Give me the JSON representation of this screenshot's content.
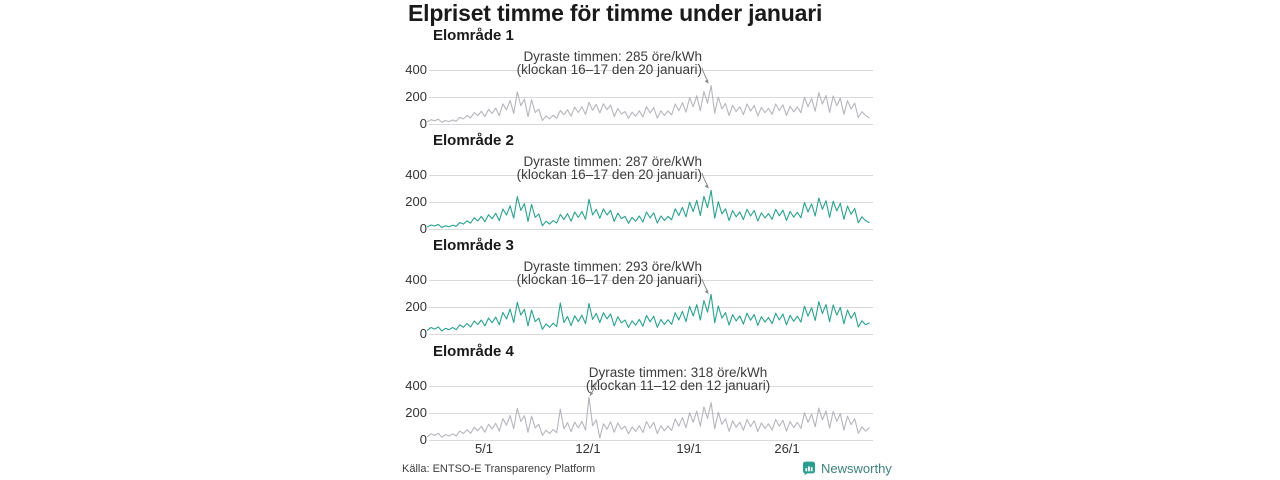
{
  "title": "Elpriset timme för timme under januari",
  "source": "Källa: ENTSO-E Transparency Platform",
  "brand": {
    "name": "Newsworthy"
  },
  "colors": {
    "teal": "#2aa190",
    "gray": "#b5b5bd",
    "grid": "#d9d9d9",
    "pointer": "#8a8a8a",
    "brand_teal": "#3e837e",
    "logo_teal": "#2a9d8f",
    "title_text": "#1a1a1a",
    "annotation_text": "#3c3c3c"
  },
  "axis": {
    "y_ticks": [
      "400",
      "200",
      "0"
    ],
    "x_ticks": [
      "5/1",
      "12/1",
      "19/1",
      "26/1"
    ]
  },
  "chart_data": {
    "type": "line",
    "title": "Elpriset timme för timme under januari",
    "unit": "öre/kWh",
    "x_description": "January 1–31, hourly prices sampled 4 points per day (night, morning, midday, evening)",
    "x_tick_labels": [
      "5/1",
      "12/1",
      "19/1",
      "26/1"
    ],
    "y_tick_labels": [
      0,
      200,
      400
    ],
    "ylim": [
      0,
      450
    ],
    "grid": "horizontal only",
    "legend": "none",
    "series": [
      {
        "area": "Elområde 1",
        "color": "gray",
        "annotation": {
          "line1": "Dyraste timmen: 285 öre/kWh",
          "line2": "(klockan 16–17 den 20 januari)",
          "peak_value": 285,
          "peak_time": "16–17 den 20 januari"
        },
        "values": [
          18,
          32,
          24,
          36,
          12,
          26,
          18,
          30,
          20,
          50,
          38,
          62,
          45,
          85,
          62,
          95,
          55,
          108,
          78,
          118,
          62,
          150,
          105,
          175,
          78,
          238,
          135,
          185,
          55,
          180,
          85,
          110,
          25,
          60,
          38,
          65,
          42,
          100,
          68,
          105,
          58,
          125,
          85,
          128,
          70,
          160,
          102,
          145,
          82,
          150,
          106,
          140,
          55,
          115,
          74,
          92,
          42,
          88,
          58,
          98,
          52,
          128,
          82,
          122,
          44,
          98,
          64,
          96,
          68,
          148,
          98,
          158,
          88,
          195,
          128,
          210,
          98,
          240,
          155,
          285,
          80,
          200,
          112,
          152,
          62,
          138,
          92,
          128,
          70,
          148,
          96,
          138,
          60,
          122,
          84,
          116,
          72,
          148,
          100,
          142,
          64,
          132,
          90,
          126,
          84,
          198,
          128,
          188,
          95,
          232,
          148,
          212,
          86,
          208,
          136,
          192,
          72,
          172,
          112,
          155,
          48,
          92,
          64,
          46
        ]
      },
      {
        "area": "Elområde 2",
        "color": "teal",
        "annotation": {
          "line1": "Dyraste timmen: 287 öre/kWh",
          "line2": "(klockan 16–17 den 20 januari)",
          "peak_value": 287,
          "peak_time": "16–17 den 20 januari"
        },
        "values": [
          16,
          30,
          22,
          34,
          11,
          24,
          17,
          28,
          20,
          48,
          36,
          60,
          44,
          84,
          60,
          93,
          54,
          106,
          76,
          116,
          62,
          148,
          104,
          172,
          80,
          240,
          138,
          188,
          56,
          182,
          86,
          112,
          24,
          58,
          36,
          62,
          44,
          108,
          70,
          114,
          58,
          126,
          86,
          130,
          72,
          220,
          104,
          146,
          80,
          148,
          104,
          138,
          56,
          118,
          76,
          94,
          42,
          86,
          58,
          96,
          52,
          126,
          82,
          120,
          44,
          96,
          62,
          94,
          68,
          150,
          100,
          160,
          90,
          198,
          130,
          212,
          100,
          242,
          158,
          287,
          80,
          202,
          112,
          150,
          62,
          136,
          90,
          126,
          70,
          146,
          96,
          136,
          60,
          120,
          82,
          114,
          72,
          146,
          98,
          140,
          64,
          130,
          88,
          124,
          84,
          196,
          126,
          186,
          96,
          230,
          146,
          210,
          86,
          206,
          134,
          190,
          72,
          170,
          110,
          152,
          46,
          90,
          62,
          48
        ]
      },
      {
        "area": "Elområde 3",
        "color": "teal",
        "annotation": {
          "line1": "Dyraste timmen: 293 öre/kWh",
          "line2": "(klockan 16–17 den 20 januari)",
          "peak_value": 293,
          "peak_time": "16–17 den 20 januari"
        },
        "values": [
          28,
          48,
          36,
          52,
          22,
          42,
          32,
          48,
          32,
          68,
          50,
          78,
          52,
          96,
          70,
          104,
          60,
          118,
          84,
          126,
          68,
          160,
          112,
          185,
          85,
          235,
          140,
          182,
          60,
          178,
          92,
          118,
          35,
          75,
          50,
          80,
          55,
          230,
          85,
          130,
          62,
          135,
          92,
          140,
          76,
          225,
          108,
          152,
          85,
          158,
          112,
          148,
          60,
          128,
          82,
          104,
          48,
          98,
          66,
          108,
          58,
          138,
          90,
          132,
          50,
          108,
          70,
          106,
          72,
          158,
          104,
          168,
          92,
          205,
          134,
          218,
          104,
          248,
          162,
          293,
          84,
          208,
          118,
          158,
          66,
          144,
          96,
          134,
          74,
          154,
          102,
          144,
          64,
          128,
          88,
          122,
          76,
          154,
          104,
          148,
          68,
          138,
          94,
          132,
          88,
          205,
          132,
          195,
          100,
          240,
          152,
          218,
          90,
          215,
          140,
          198,
          76,
          178,
          116,
          160,
          52,
          98,
          68,
          82
        ]
      },
      {
        "area": "Elområde 4",
        "color": "gray",
        "annotation": {
          "line1": "Dyraste timmen: 318 öre/kWh",
          "line2": "(klockan 11–12 den 12 januari)",
          "peak_value": 318,
          "peak_time": "11–12 den 12 januari"
        },
        "values": [
          26,
          46,
          34,
          50,
          20,
          40,
          30,
          46,
          30,
          66,
          48,
          76,
          50,
          94,
          68,
          102,
          58,
          116,
          82,
          124,
          66,
          158,
          110,
          182,
          84,
          235,
          138,
          180,
          58,
          176,
          90,
          116,
          34,
          72,
          48,
          78,
          54,
          228,
          84,
          128,
          62,
          132,
          90,
          138,
          74,
          318,
          106,
          150,
          15,
          120,
          80,
          135,
          58,
          126,
          80,
          102,
          46,
          96,
          64,
          106,
          56,
          136,
          88,
          130,
          48,
          106,
          68,
          104,
          70,
          156,
          102,
          166,
          90,
          202,
          132,
          214,
          102,
          245,
          160,
          278,
          82,
          205,
          116,
          156,
          64,
          142,
          94,
          132,
          72,
          152,
          100,
          142,
          62,
          126,
          86,
          120,
          74,
          152,
          102,
          146,
          66,
          136,
          92,
          130,
          86,
          202,
          130,
          192,
          98,
          236,
          150,
          215,
          88,
          212,
          138,
          196,
          74,
          176,
          114,
          158,
          50,
          96,
          66,
          90
        ]
      }
    ]
  }
}
